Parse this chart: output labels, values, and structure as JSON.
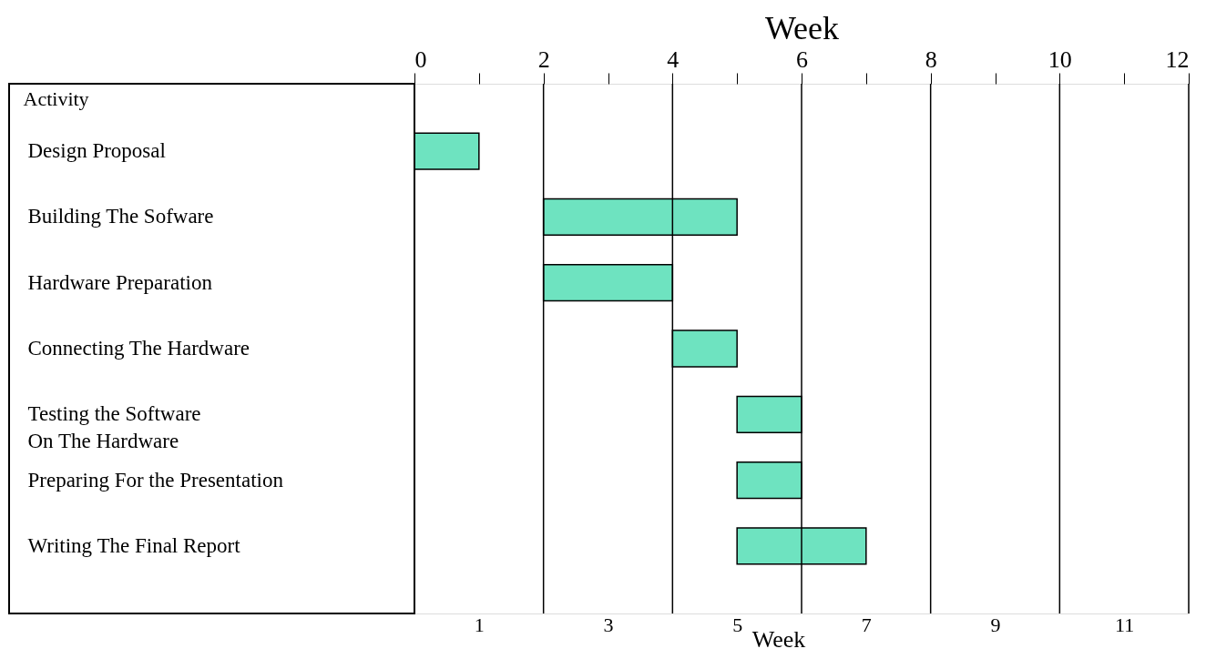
{
  "chart_data": {
    "type": "bar",
    "orientation": "horizontal",
    "x2label": "Week",
    "xlabel": "Week",
    "ylabel": "Activity",
    "categories": [
      "Design Proposal",
      "Building The Sofware",
      "Hardware Preparation",
      "Connecting The Hardware",
      "Testing the Software\nOn The Hardware",
      "Preparing For the Presentation",
      "Writing The Final Report"
    ],
    "base": [
      0,
      2,
      2,
      4,
      5,
      5,
      5
    ],
    "values": [
      1,
      3,
      2,
      1,
      1,
      1,
      2
    ],
    "color": "#6ee3c0",
    "xlim": [
      0,
      12
    ],
    "xticks": [
      1,
      3,
      5,
      7,
      9,
      11
    ],
    "x2lim": [
      0,
      12
    ],
    "x2ticks": [
      0,
      {
        "value": 1,
        "label": null
      },
      2,
      {
        "value": 3,
        "label": null
      },
      4,
      {
        "value": 5,
        "label": null
      },
      6,
      {
        "value": 7,
        "label": null
      },
      8,
      {
        "value": 9,
        "label": null
      },
      10,
      {
        "value": 11,
        "label": null
      },
      12
    ],
    "grid": "x"
  }
}
